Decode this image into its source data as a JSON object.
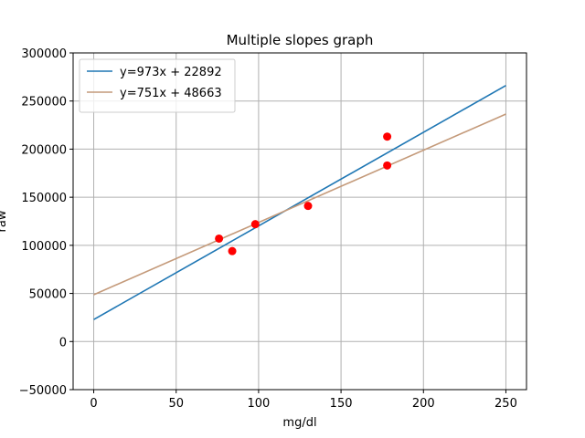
{
  "chart_data": {
    "type": "scatter",
    "title": "Multiple slopes graph",
    "xlabel": "mg/dl",
    "ylabel": "raw",
    "xlim": [
      -12.5,
      262.5
    ],
    "ylim": [
      -50000,
      300000
    ],
    "x_ticks": [
      0,
      50,
      100,
      150,
      200,
      250
    ],
    "y_ticks": [
      -50000,
      0,
      50000,
      100000,
      150000,
      200000,
      250000,
      300000
    ],
    "grid": true,
    "legend_position": "upper-left",
    "points": {
      "color": "#ff0000",
      "x": [
        76,
        84,
        98,
        130,
        178,
        178
      ],
      "y": [
        107000,
        94000,
        122000,
        141000,
        213000,
        183000
      ]
    },
    "series": [
      {
        "name": "y=973x + 22892",
        "slope": 973,
        "intercept": 22892,
        "x": [
          0,
          250
        ],
        "color": "#1f77b4"
      },
      {
        "name": "y=751x + 48663",
        "slope": 751,
        "intercept": 48663,
        "x": [
          0,
          250
        ],
        "color": "#c49a7a"
      }
    ]
  }
}
